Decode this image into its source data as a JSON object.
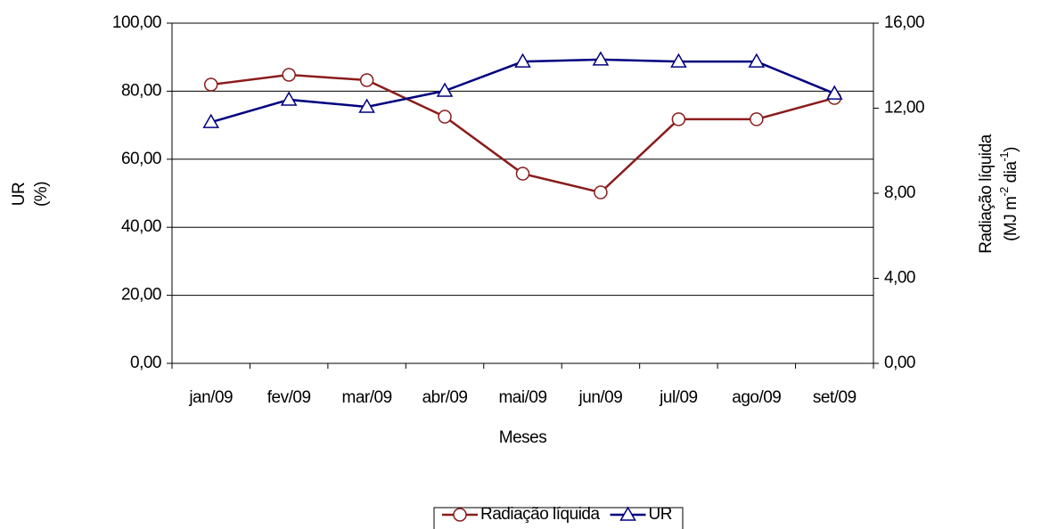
{
  "chart_data": {
    "type": "line",
    "x_label": "Meses",
    "y_label": [
      "UR",
      "(%)"
    ],
    "y2_label": [
      "Radiação líquida",
      [
        "(MJ m",
        "-2",
        " dia",
        "-1",
        ")"
      ]
    ],
    "categories": [
      "jan/09",
      "fev/09",
      "mar/09",
      "abr/09",
      "mai/09",
      "jun/09",
      "jul/09",
      "ago/09",
      "set/09"
    ],
    "ylim": [
      0,
      100
    ],
    "yticks": [
      {
        "value": 0,
        "label": "0,00"
      },
      {
        "value": 20,
        "label": "20,00"
      },
      {
        "value": 40,
        "label": "40,00"
      },
      {
        "value": 60,
        "label": "60,00"
      },
      {
        "value": 80,
        "label": "80,00"
      },
      {
        "value": 100,
        "label": "100,00"
      }
    ],
    "y2lim": [
      0,
      16
    ],
    "y2ticks": [
      {
        "value": 0,
        "label": "0,00"
      },
      {
        "value": 4,
        "label": "4,00"
      },
      {
        "value": 8,
        "label": "8,00"
      },
      {
        "value": 12,
        "label": "12,00"
      },
      {
        "value": 16,
        "label": "16,00"
      }
    ],
    "grid": true,
    "legend": "bottom",
    "series": [
      {
        "name": "Radiação líquida",
        "color": "#8b1c1c",
        "marker": "circle",
        "axis": "y2",
        "values": [
          13.11,
          13.57,
          13.32,
          11.6,
          8.92,
          8.04,
          11.48,
          11.48,
          12.48
        ]
      },
      {
        "name": "UR",
        "color": "#000080",
        "marker": "triangle",
        "values": [
          70.9,
          77.5,
          75.4,
          80.1,
          88.7,
          89.3,
          88.7,
          88.7,
          79.3
        ]
      }
    ]
  }
}
